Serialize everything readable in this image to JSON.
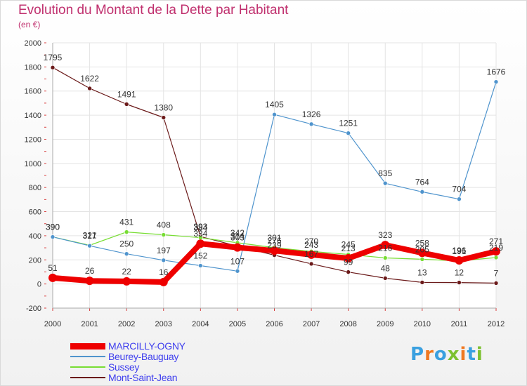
{
  "chart_data": {
    "type": "line",
    "title": "Evolution du Montant de la Dette par Habitant",
    "subtitle": "(en €)",
    "x": [
      "2000",
      "2001",
      "2002",
      "2003",
      "2004",
      "2005",
      "2006",
      "2007",
      "2008",
      "2009",
      "2010",
      "2011",
      "2012"
    ],
    "ylim": [
      -200,
      2000
    ],
    "yticks": [
      -200,
      0,
      200,
      400,
      600,
      800,
      1000,
      1200,
      1400,
      1600,
      1800,
      2000
    ],
    "grid": true,
    "legend_position": "bottom-left",
    "series": [
      {
        "name": "MARCILLY-OGNY",
        "color": "#ee0000",
        "values": [
          51,
          26,
          22,
          16,
          334,
          303,
          276,
          243,
          213,
          323,
          258,
          196,
          271
        ]
      },
      {
        "name": "Beurey-Bauguay",
        "color": "#4f94cd",
        "values": [
          390,
          317,
          250,
          197,
          152,
          107,
          1405,
          1326,
          1251,
          835,
          764,
          704,
          1676
        ]
      },
      {
        "name": "Sussey",
        "color": "#77dd33",
        "values": [
          390,
          321,
          431,
          408,
          384,
          342,
          301,
          270,
          245,
          216,
          205,
          191,
          219
        ]
      },
      {
        "name": "Mont-Saint-Jean",
        "color": "#6b1a1a",
        "values": [
          1795,
          1622,
          1491,
          1380,
          393,
          314,
          239,
          167,
          99,
          48,
          13,
          12,
          7
        ]
      }
    ]
  },
  "logo": {
    "letters": [
      "P",
      "r",
      "o",
      "x",
      "i",
      "t",
      "i"
    ],
    "colors": [
      "#3aa0e0",
      "#f07820",
      "#3aa0e0",
      "#7cc030",
      "#f07820",
      "#3aa0e0",
      "#7cc030"
    ]
  }
}
